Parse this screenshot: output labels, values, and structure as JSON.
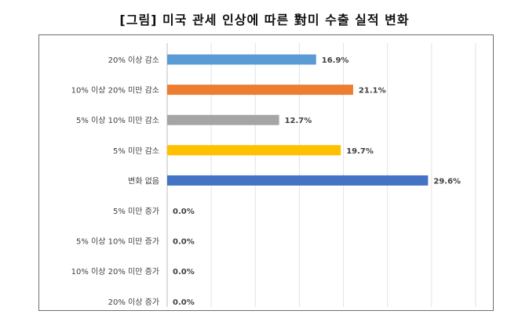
{
  "chart_data": {
    "type": "bar",
    "orientation": "horizontal",
    "title": "[그림] 미국 관세 인상에 따른 對미 수출 실적 변화",
    "categories": [
      "20% 이상 감소",
      "10% 이상 20% 미만 감소",
      "5% 이상 10% 미만 감소",
      "5% 미만 감소",
      "변화 없음",
      "5% 미만 증가",
      "5% 이상 10% 미만 증가",
      "10% 이상 20% 미만 증가",
      "20% 이상 증가"
    ],
    "values": [
      16.9,
      21.1,
      12.7,
      19.7,
      29.6,
      0.0,
      0.0,
      0.0,
      0.0
    ],
    "value_labels": [
      "16.9%",
      "21.1%",
      "12.7%",
      "19.7%",
      "29.6%",
      "0.0%",
      "0.0%",
      "0.0%",
      "0.0%"
    ],
    "colors": [
      "#5b9bd5",
      "#ed7d31",
      "#a5a5a5",
      "#ffc000",
      "#4472c4",
      "#4472c4",
      "#4472c4",
      "#4472c4",
      "#4472c4"
    ],
    "xlim": [
      0,
      35
    ],
    "grid": true,
    "xlabel": "",
    "ylabel": ""
  }
}
